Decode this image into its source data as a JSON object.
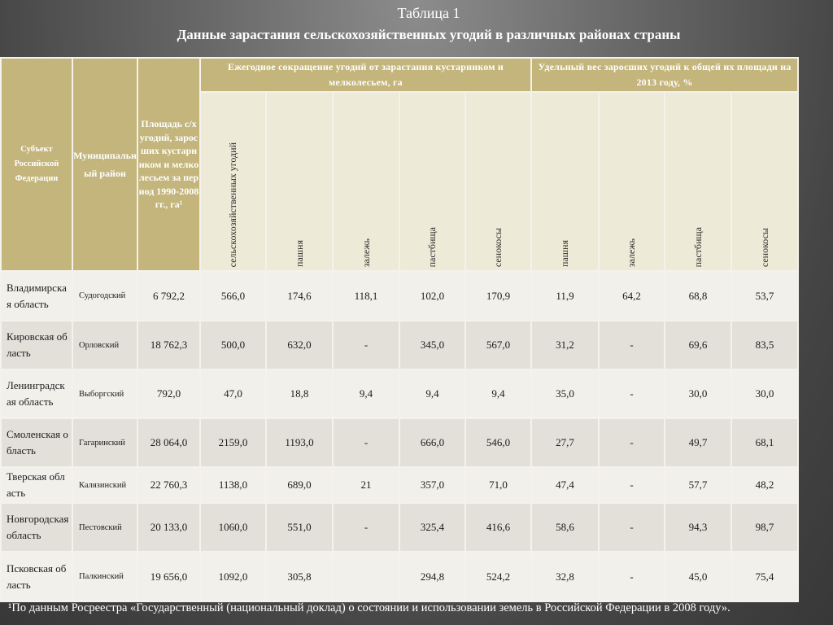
{
  "title": "Таблица 1",
  "subtitle": "Данные зарастания сельскохозяйственных угодий в различных районах страны",
  "colors": {
    "header_bg": "#c3b57b",
    "subheader_bg": "#eeead8",
    "row_light": "#f1f0eb",
    "row_dark": "#e2e0d9"
  },
  "table": {
    "headers": {
      "subject": "Субъект Российской Федерации",
      "district": "Муниципальный район",
      "area": "Площадь с/х угодий, заросших кустарником и мелколесьем за период 1990-2008 гг., га¹",
      "annual_group": "Ежегодное сокращение угодий от зарастания кустарником и мелколесьем, га",
      "share_group": "Удельный вес заросших угодий к общей их площади на 2013 году, %",
      "annual_cols": [
        "сельскохозяйственных угодий",
        "пашня",
        "залежь",
        "пастбища",
        "сенокосы"
      ],
      "share_cols": [
        "пашня",
        "залежь",
        "пастбища",
        "сенокосы"
      ]
    },
    "rows": [
      {
        "subject": "Владимирская область",
        "district": "Судогодский",
        "values": [
          "6 792,2",
          "566,0",
          "174,6",
          "118,1",
          "102,0",
          "170,9",
          "11,9",
          "64,2",
          "68,8",
          "53,7"
        ]
      },
      {
        "subject": "Кировская область",
        "district": "Орловский",
        "values": [
          "18 762,3",
          "500,0",
          "632,0",
          "-",
          "345,0",
          "567,0",
          "31,2",
          "-",
          "69,6",
          "83,5"
        ]
      },
      {
        "subject": "Ленинградская область",
        "district": "Выборгский",
        "values": [
          "792,0",
          "47,0",
          "18,8",
          "9,4",
          "9,4",
          "9,4",
          "35,0",
          "-",
          "30,0",
          "30,0"
        ]
      },
      {
        "subject": "Смоленская область",
        "district": "Гагаринский",
        "values": [
          "28 064,0",
          "2159,0",
          "1193,0",
          "-",
          "666,0",
          "546,0",
          "27,7",
          "-",
          "49,7",
          "68,1"
        ]
      },
      {
        "subject": "Тверская область",
        "district": "Калязинский",
        "values": [
          "22 760,3",
          "1138,0",
          "689,0",
          "21",
          "357,0",
          "71,0",
          "47,4",
          "-",
          "57,7",
          "48,2"
        ]
      },
      {
        "subject": "Новгородская область",
        "district": "Пестовский",
        "values": [
          "20 133,0",
          "1060,0",
          "551,0",
          "-",
          "325,4",
          "416,6",
          "58,6",
          "-",
          "94,3",
          "98,7"
        ]
      },
      {
        "subject": "Псковская область",
        "district": "Палкинский",
        "values": [
          "19 656,0",
          "1092,0",
          "305,8",
          "",
          "294,8",
          "524,2",
          "32,8",
          "-",
          "45,0",
          "75,4"
        ]
      }
    ]
  },
  "footnote": "¹По данным Росреестра «Государственный  (национальный доклад) о состоянии и использовании земель в Российской Федерации в 2008 году»."
}
